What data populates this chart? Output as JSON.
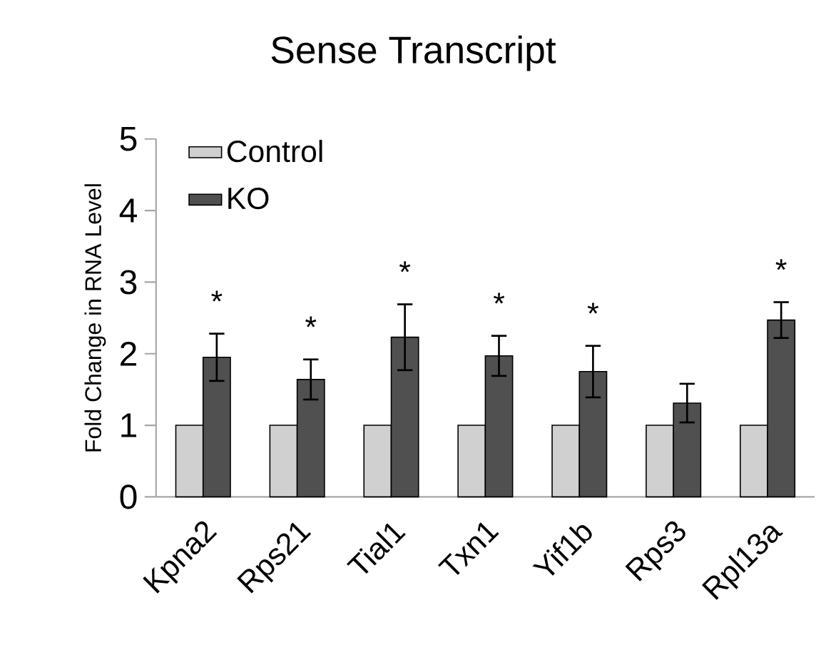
{
  "chart_data": {
    "type": "bar",
    "title": "Sense Transcript",
    "ylabel": "Fold Change in RNA Level",
    "categories": [
      "Kpna2",
      "Rps21",
      "Tial1",
      "Txn1",
      "Yif1b",
      "Rps3",
      "Rpl13a"
    ],
    "series": [
      {
        "name": "Control",
        "color": "#d0d0d0",
        "values": [
          1,
          1,
          1,
          1,
          1,
          1,
          1
        ]
      },
      {
        "name": "KO",
        "color": "#505050",
        "values": [
          1.95,
          1.64,
          2.23,
          1.97,
          1.75,
          1.31,
          2.47
        ],
        "errors": [
          0.33,
          0.28,
          0.46,
          0.28,
          0.36,
          0.27,
          0.25
        ]
      }
    ],
    "ylim": [
      0,
      5
    ],
    "yticks": [
      0,
      1,
      2,
      3,
      4,
      5
    ],
    "legend": "top left",
    "grid": false,
    "annotations": [
      {
        "text": "*",
        "x": "Kpna2",
        "y": 1.95
      },
      {
        "text": "*",
        "x": "Rps21",
        "y": 1.64
      },
      {
        "text": "*",
        "x": "Tial1",
        "y": 2.23
      },
      {
        "text": "*",
        "x": "Txn1",
        "y": 1.97
      },
      {
        "text": "*",
        "x": "Yif1b",
        "y": 1.75
      },
      {
        "text": "*",
        "x": "Rpl13a",
        "y": 2.47
      }
    ]
  }
}
